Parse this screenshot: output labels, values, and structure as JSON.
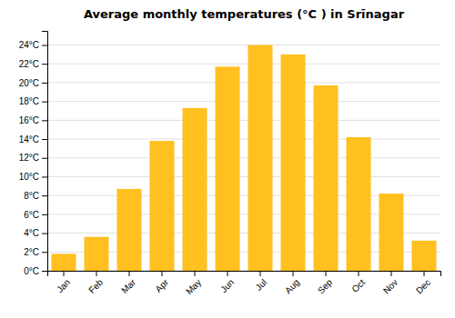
{
  "chart_data": {
    "type": "bar",
    "title": "Average monthly temperatures (°C ) in Srīnagar",
    "categories": [
      "Jan",
      "Feb",
      "Mar",
      "Apr",
      "May",
      "Jun",
      "Jul",
      "Aug",
      "Sep",
      "Oct",
      "Nov",
      "Dec"
    ],
    "values": [
      1.8,
      3.6,
      8.7,
      13.8,
      17.3,
      21.7,
      24.0,
      23.0,
      19.7,
      14.2,
      8.2,
      3.2
    ],
    "color": "#FFC020",
    "ylim": [
      0,
      25.5
    ],
    "yticks": [
      {
        "value": 0,
        "label": "0°C"
      },
      {
        "value": 2,
        "label": "2°C"
      },
      {
        "value": 4,
        "label": "4°C"
      },
      {
        "value": 6,
        "label": "6°C"
      },
      {
        "value": 8,
        "label": "8°C"
      },
      {
        "value": 10,
        "label": "10°C"
      },
      {
        "value": 12,
        "label": "12°C"
      },
      {
        "value": 14,
        "label": "14°C"
      },
      {
        "value": 16,
        "label": "16°C"
      },
      {
        "value": 18,
        "label": "18°C"
      },
      {
        "value": 20,
        "label": "20°C"
      },
      {
        "value": 22,
        "label": "22°C"
      },
      {
        "value": 24,
        "label": "24°C"
      }
    ],
    "grid": true
  }
}
